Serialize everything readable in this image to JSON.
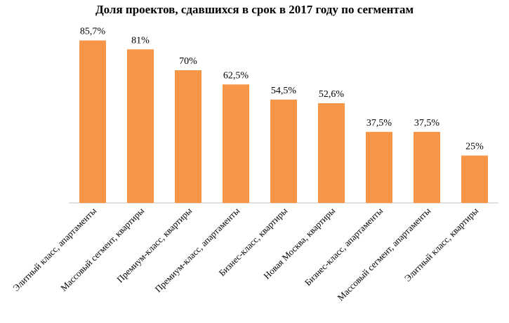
{
  "chart_data": {
    "type": "bar",
    "title": "Доля проектов, сдавшихся в срок в 2017 году по сегментам",
    "categories": [
      "Элитный класс, апартаменты",
      "Массовый сегмент, квартиры",
      "Премиум-класс, квартиры",
      "Премиум-класс, апартаменты",
      "Бизнес-класс, квартиры",
      "Новая Москва, квартиры",
      "Бизнес-класс, апартаменты",
      "Массовый сегмент, апартаменты",
      "Элитный класс, квартиры"
    ],
    "values": [
      85.7,
      81,
      70,
      62.5,
      54.5,
      52.6,
      37.5,
      37.5,
      25
    ],
    "value_labels": [
      "85,7%",
      "81%",
      "70%",
      "62,5%",
      "54,5%",
      "52,6%",
      "37,5%",
      "37,5%",
      "25%"
    ],
    "ylim": [
      0,
      100
    ],
    "grid": false,
    "bar_color": "#F79646",
    "axis_color": "#BFBFBF"
  }
}
